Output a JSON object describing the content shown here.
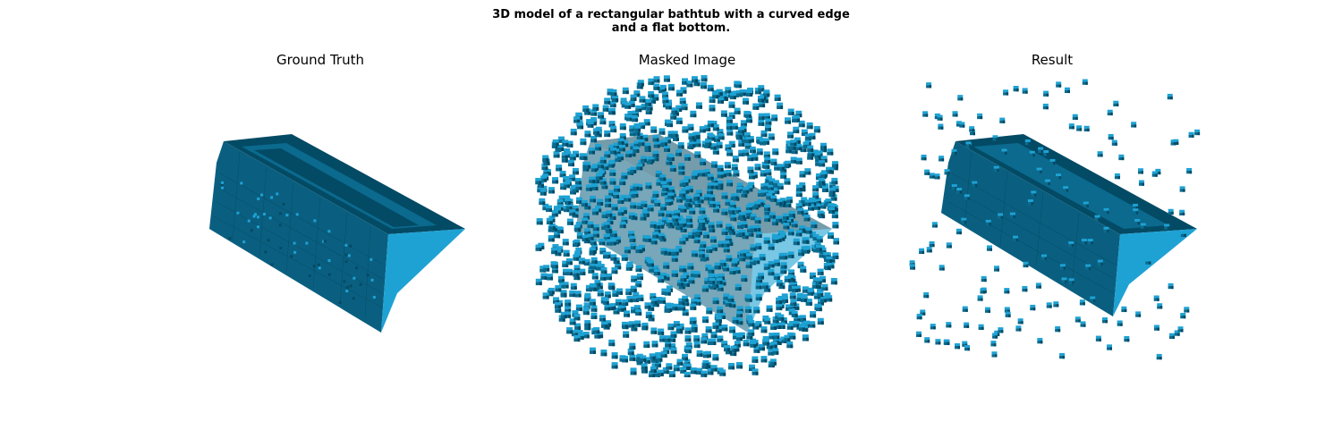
{
  "figure": {
    "title_line1": "3D model of a rectangular bathtub with a curved edge",
    "title_line2": "and a flat bottom."
  },
  "panels": [
    {
      "title": "Ground Truth"
    },
    {
      "title": "Masked Image"
    },
    {
      "title": "Result"
    }
  ],
  "colors": {
    "voxel_dark": "#034a64",
    "voxel_mid": "#0b6a8e",
    "voxel_light": "#1ea2d4"
  }
}
